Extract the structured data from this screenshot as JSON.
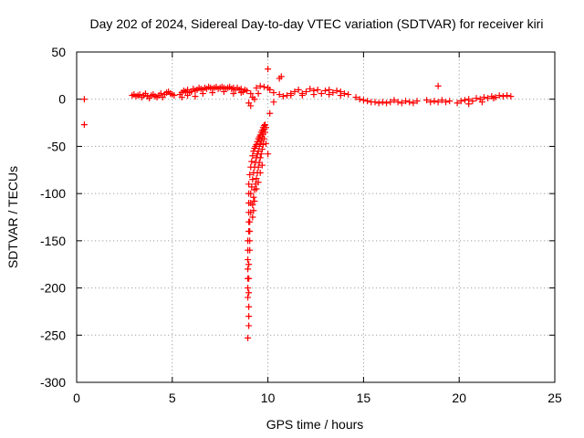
{
  "chart_data": {
    "type": "scatter",
    "title": "Day 202 of 2024, Sidereal Day-to-day VTEC variation (SDTVAR) for receiver kiri",
    "xlabel": "GPS time / hours",
    "ylabel": "SDTVAR / TECUs",
    "xlim": [
      0,
      25
    ],
    "ylim": [
      -300,
      50
    ],
    "xticks": [
      0,
      5,
      10,
      15,
      20,
      25
    ],
    "yticks": [
      50,
      0,
      -50,
      -100,
      -150,
      -200,
      -250,
      -300
    ],
    "grid": true,
    "marker": "+",
    "color": "#ff0000",
    "series": [
      {
        "name": "SDTVAR",
        "points": [
          [
            0.4,
            0
          ],
          [
            0.4,
            -27
          ],
          [
            2.9,
            4
          ],
          [
            3.0,
            5
          ],
          [
            3.1,
            3
          ],
          [
            3.2,
            4
          ],
          [
            3.3,
            5
          ],
          [
            3.4,
            2
          ],
          [
            3.5,
            4
          ],
          [
            3.6,
            6
          ],
          [
            3.7,
            3
          ],
          [
            3.8,
            1
          ],
          [
            3.9,
            4
          ],
          [
            4.0,
            5
          ],
          [
            4.1,
            3
          ],
          [
            4.2,
            2
          ],
          [
            4.3,
            4
          ],
          [
            4.4,
            6
          ],
          [
            4.5,
            2
          ],
          [
            4.6,
            5
          ],
          [
            4.7,
            7
          ],
          [
            4.8,
            8
          ],
          [
            4.9,
            6
          ],
          [
            5.0,
            5
          ],
          [
            5.1,
            4
          ],
          [
            5.4,
            5
          ],
          [
            5.5,
            7
          ],
          [
            5.6,
            9
          ],
          [
            5.7,
            8
          ],
          [
            5.8,
            10
          ],
          [
            5.9,
            7
          ],
          [
            6.0,
            8
          ],
          [
            6.1,
            11
          ],
          [
            6.2,
            9
          ],
          [
            6.3,
            10
          ],
          [
            6.4,
            12
          ],
          [
            6.5,
            11
          ],
          [
            6.6,
            10
          ],
          [
            6.7,
            12
          ],
          [
            6.8,
            11
          ],
          [
            6.9,
            13
          ],
          [
            7.0,
            12
          ],
          [
            7.1,
            11
          ],
          [
            7.2,
            12
          ],
          [
            7.3,
            13
          ],
          [
            7.4,
            11
          ],
          [
            7.5,
            12
          ],
          [
            7.6,
            13
          ],
          [
            7.7,
            12
          ],
          [
            7.8,
            11
          ],
          [
            7.9,
            12
          ],
          [
            8.0,
            13
          ],
          [
            8.1,
            11
          ],
          [
            8.2,
            12
          ],
          [
            8.3,
            10
          ],
          [
            8.4,
            12
          ],
          [
            8.5,
            10
          ],
          [
            8.6,
            11
          ],
          [
            8.7,
            8
          ],
          [
            8.8,
            10
          ],
          [
            8.9,
            9
          ],
          [
            5.5,
            2
          ],
          [
            5.8,
            4
          ],
          [
            6.2,
            3
          ],
          [
            6.6,
            6
          ],
          [
            7.1,
            7
          ],
          [
            7.7,
            8
          ],
          [
            8.2,
            6
          ],
          [
            8.6,
            7
          ],
          [
            9.1,
            6
          ],
          [
            9.4,
            12
          ],
          [
            9.6,
            14
          ],
          [
            9.8,
            13
          ],
          [
            10.0,
            12
          ],
          [
            10.1,
            10
          ],
          [
            10.3,
            7
          ],
          [
            10.6,
            5
          ],
          [
            10.8,
            3
          ],
          [
            9.2,
            2
          ],
          [
            9.0,
            -4
          ],
          [
            9.1,
            -7
          ],
          [
            9.3,
            0
          ],
          [
            9.5,
            6
          ],
          [
            10.0,
            32
          ],
          [
            10.6,
            22
          ],
          [
            10.7,
            24
          ],
          [
            10.3,
            -3
          ],
          [
            10.1,
            -15
          ],
          [
            11.0,
            4
          ],
          [
            11.2,
            6
          ],
          [
            11.4,
            8
          ],
          [
            11.6,
            10
          ],
          [
            11.8,
            6
          ],
          [
            12.0,
            8
          ],
          [
            12.2,
            11
          ],
          [
            12.4,
            9
          ],
          [
            12.6,
            10
          ],
          [
            12.8,
            6
          ],
          [
            13.0,
            9
          ],
          [
            13.2,
            10
          ],
          [
            13.4,
            7
          ],
          [
            13.6,
            9
          ],
          [
            13.8,
            8
          ],
          [
            14.0,
            6
          ],
          [
            14.2,
            5
          ],
          [
            11.2,
            4
          ],
          [
            11.8,
            4
          ],
          [
            12.4,
            5
          ],
          [
            13.2,
            5
          ],
          [
            13.8,
            4
          ],
          [
            14.6,
            2
          ],
          [
            14.8,
            0
          ],
          [
            15.0,
            -1
          ],
          [
            15.2,
            -2
          ],
          [
            15.4,
            -3
          ],
          [
            15.6,
            -3
          ],
          [
            15.8,
            -4
          ],
          [
            16.0,
            -3
          ],
          [
            16.2,
            -4
          ],
          [
            16.4,
            -3
          ],
          [
            16.6,
            -1
          ],
          [
            16.8,
            -3
          ],
          [
            17.0,
            -4
          ],
          [
            17.2,
            -2
          ],
          [
            17.4,
            -3
          ],
          [
            17.6,
            -4
          ],
          [
            17.8,
            -2
          ],
          [
            18.3,
            -1
          ],
          [
            18.5,
            -3
          ],
          [
            18.7,
            -2
          ],
          [
            18.9,
            -3
          ],
          [
            19.1,
            -1
          ],
          [
            19.3,
            -3
          ],
          [
            19.5,
            -2
          ],
          [
            18.9,
            14
          ],
          [
            19.9,
            -4
          ],
          [
            20.1,
            -2
          ],
          [
            20.3,
            -1
          ],
          [
            20.5,
            0
          ],
          [
            20.7,
            -2
          ],
          [
            20.9,
            1
          ],
          [
            21.1,
            0
          ],
          [
            21.3,
            2
          ],
          [
            21.5,
            1
          ],
          [
            21.7,
            3
          ],
          [
            21.9,
            2
          ],
          [
            22.1,
            4
          ],
          [
            22.3,
            3
          ],
          [
            22.5,
            4
          ],
          [
            22.7,
            3
          ],
          [
            20.5,
            -5
          ],
          [
            21.2,
            -3
          ],
          [
            21.8,
            1
          ],
          [
            9.8,
            -28
          ],
          [
            9.75,
            -30
          ],
          [
            9.7,
            -33
          ],
          [
            9.65,
            -35
          ],
          [
            9.6,
            -38
          ],
          [
            9.55,
            -40
          ],
          [
            9.5,
            -42
          ],
          [
            9.45,
            -45
          ],
          [
            9.4,
            -48
          ],
          [
            9.35,
            -50
          ],
          [
            9.3,
            -52
          ],
          [
            9.25,
            -55
          ],
          [
            9.2,
            -60
          ],
          [
            9.15,
            -66
          ],
          [
            9.1,
            -72
          ],
          [
            9.05,
            -80
          ],
          [
            9.0,
            -90
          ],
          [
            9.0,
            -100
          ],
          [
            9.0,
            -110
          ],
          [
            9.0,
            -120
          ],
          [
            9.0,
            -130
          ],
          [
            9.0,
            -140
          ],
          [
            8.95,
            -150
          ],
          [
            8.95,
            -160
          ],
          [
            8.95,
            -170
          ],
          [
            8.95,
            -180
          ],
          [
            8.95,
            -190
          ],
          [
            8.95,
            -200
          ],
          [
            8.95,
            -210
          ],
          [
            9.0,
            -220
          ],
          [
            9.0,
            -230
          ],
          [
            9.0,
            -240
          ],
          [
            8.95,
            -253
          ],
          [
            9.85,
            -27
          ],
          [
            9.8,
            -32
          ],
          [
            9.75,
            -37
          ],
          [
            9.7,
            -40
          ],
          [
            9.65,
            -44
          ],
          [
            9.6,
            -47
          ],
          [
            9.55,
            -50
          ],
          [
            9.5,
            -55
          ],
          [
            9.45,
            -58
          ],
          [
            9.4,
            -62
          ],
          [
            9.35,
            -67
          ],
          [
            9.3,
            -72
          ],
          [
            9.25,
            -78
          ],
          [
            9.2,
            -85
          ],
          [
            9.15,
            -93
          ],
          [
            9.1,
            -100
          ],
          [
            9.1,
            -110
          ],
          [
            9.1,
            -120
          ],
          [
            9.05,
            -130
          ],
          [
            9.05,
            -140
          ],
          [
            9.05,
            -150
          ],
          [
            9.05,
            -160
          ],
          [
            9.0,
            -175
          ],
          [
            9.0,
            -190
          ],
          [
            9.0,
            -205
          ],
          [
            9.9,
            -30
          ],
          [
            9.85,
            -35
          ],
          [
            9.8,
            -42
          ],
          [
            9.75,
            -48
          ],
          [
            9.7,
            -53
          ],
          [
            9.65,
            -58
          ],
          [
            9.6,
            -62
          ],
          [
            9.55,
            -67
          ],
          [
            9.5,
            -72
          ],
          [
            9.45,
            -78
          ],
          [
            9.4,
            -84
          ],
          [
            9.35,
            -90
          ],
          [
            9.3,
            -96
          ],
          [
            9.25,
            -104
          ],
          [
            9.2,
            -112
          ],
          [
            9.2,
            -125
          ],
          [
            10.0,
            -58
          ],
          [
            9.9,
            -47
          ],
          [
            9.7,
            -70
          ],
          [
            9.6,
            -78
          ],
          [
            9.5,
            -88
          ],
          [
            9.4,
            -95
          ],
          [
            9.3,
            -108
          ],
          [
            9.25,
            -118
          ]
        ]
      }
    ]
  }
}
